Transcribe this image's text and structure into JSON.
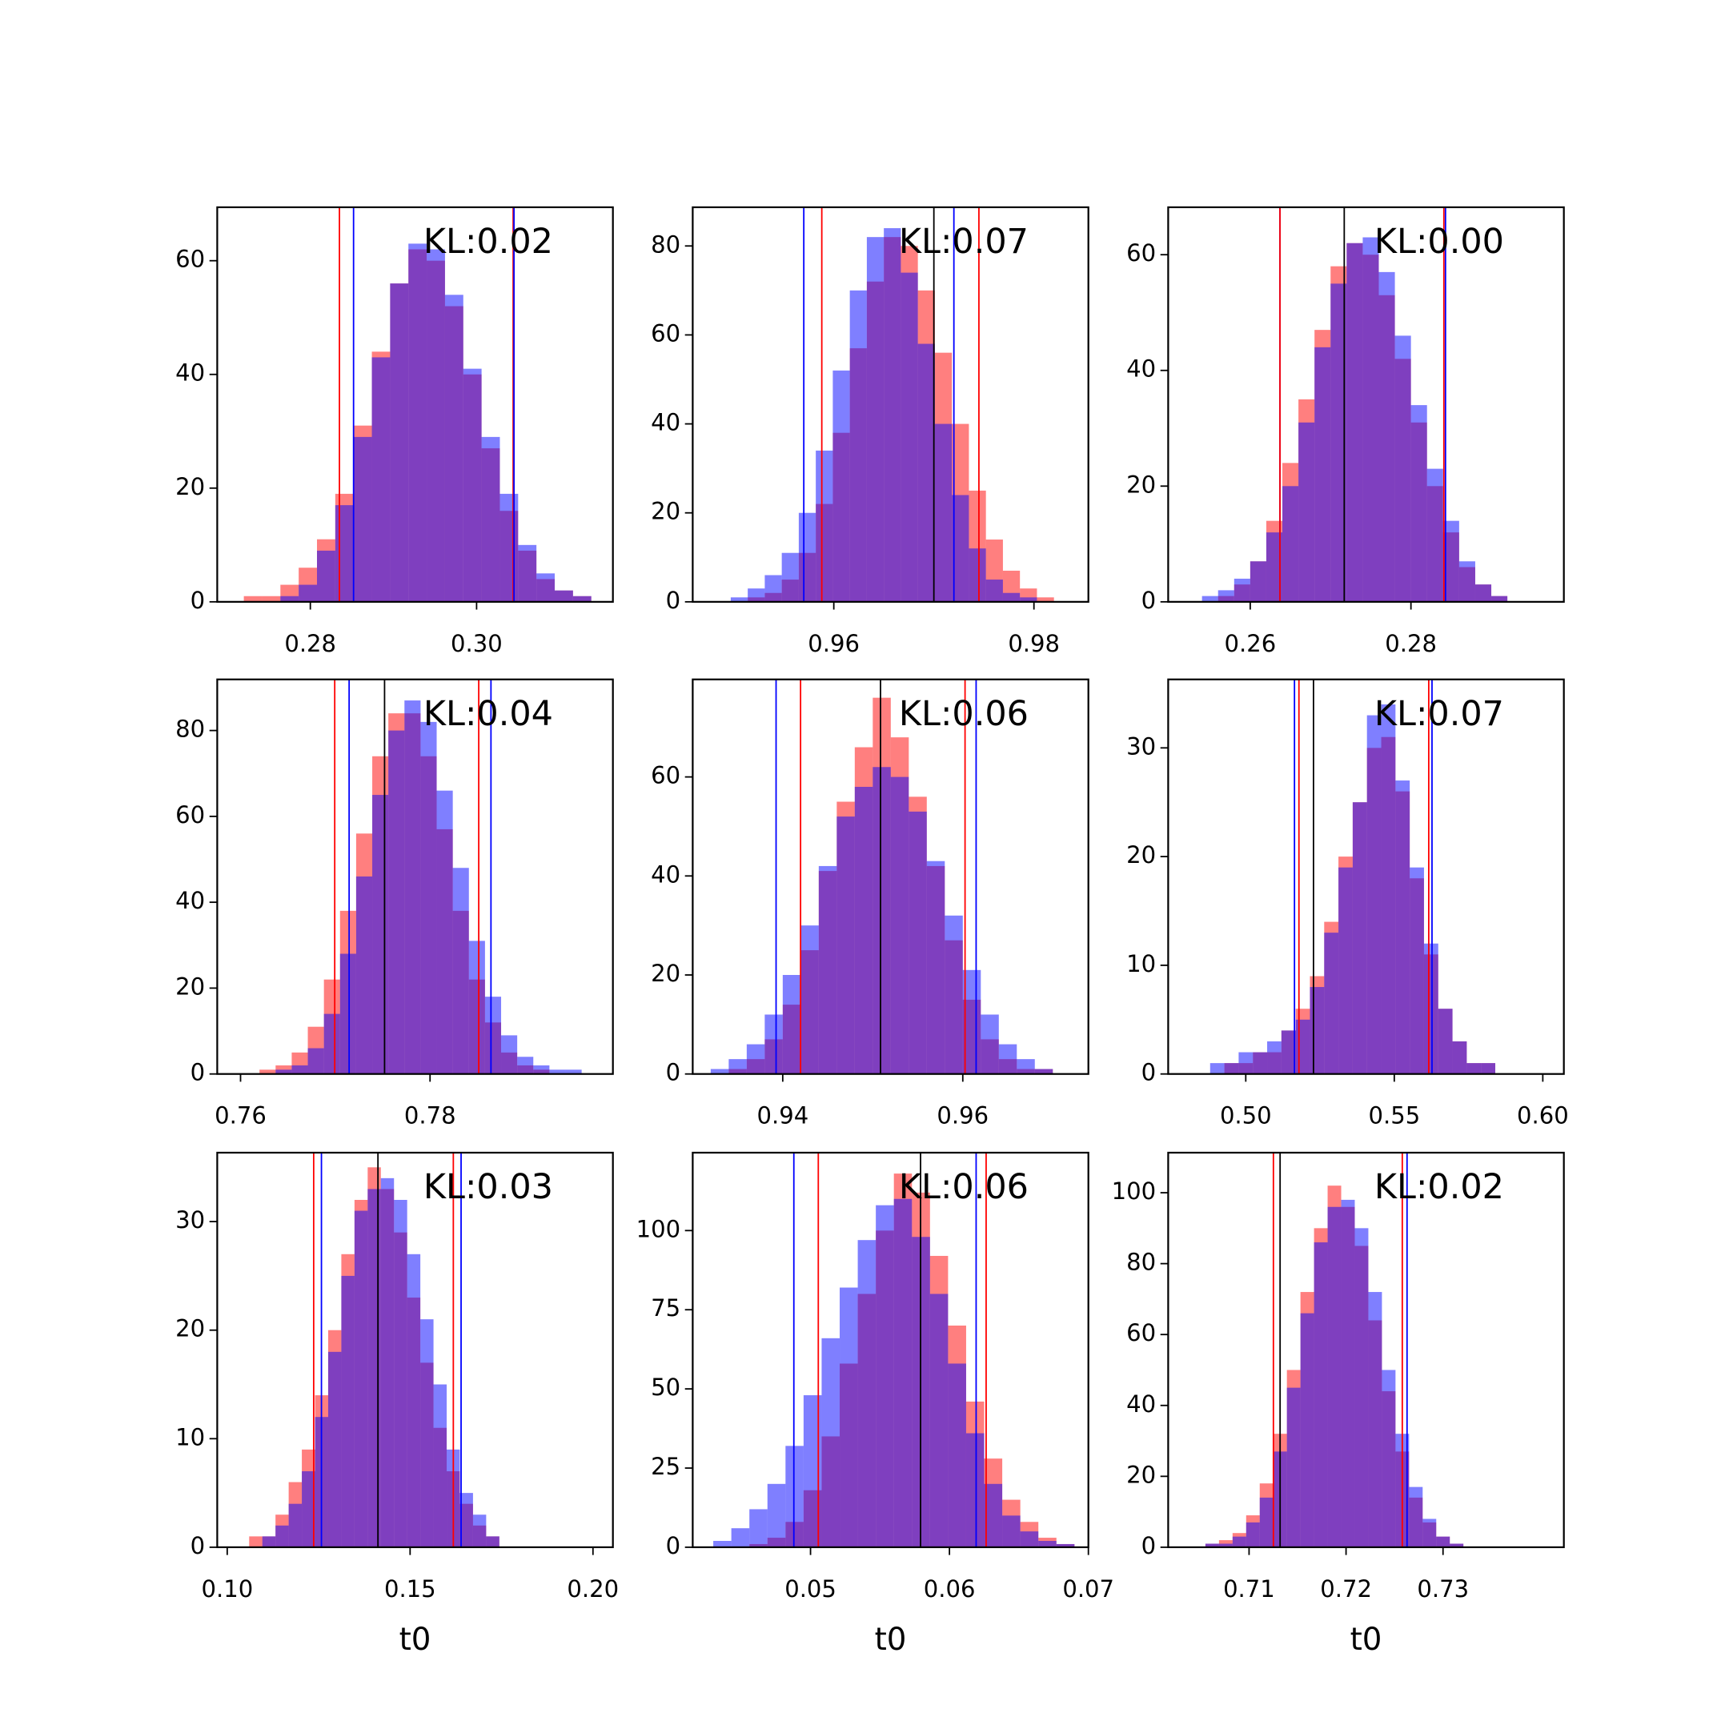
{
  "chart_data": [
    {
      "type": "histogram",
      "annotation": "KL:0.02",
      "xlim": [
        0.2688,
        0.3164
      ],
      "ylim": [
        0,
        69.4
      ],
      "xticks": [
        0.28,
        {
          "value": 0.3,
          "label": "0.30"
        }
      ],
      "yticks": [
        0,
        20,
        40,
        60
      ],
      "bins": [
        0.272,
        0.2742,
        0.2764,
        0.2786,
        0.2808,
        0.283,
        0.2852,
        0.2874,
        0.2896,
        0.2918,
        0.294,
        0.2962,
        0.2984,
        0.3006,
        0.3028,
        0.305,
        0.3072,
        0.3094,
        0.3116,
        0.3138,
        0.316
      ],
      "series": [
        {
          "color": "#ff0000",
          "alpha": 0.5,
          "values": [
            1,
            1,
            3,
            6,
            11,
            19,
            31,
            44,
            56,
            62,
            60,
            52,
            40,
            27,
            16,
            9,
            4,
            2,
            1,
            0
          ]
        },
        {
          "color": "#0000ff",
          "alpha": 0.5,
          "values": [
            0,
            0,
            1,
            3,
            9,
            17,
            29,
            43,
            56,
            63,
            62,
            54,
            41,
            29,
            19,
            10,
            5,
            2,
            1,
            0
          ]
        }
      ],
      "vlines": [
        {
          "x": 0.2835,
          "color": "#ff0000"
        },
        {
          "x": 0.2852,
          "color": "#0000ff"
        },
        {
          "x": 0.3044,
          "color": "#ff0000"
        },
        {
          "x": 0.3045,
          "color": "#0000ff"
        }
      ]
    },
    {
      "type": "histogram",
      "annotation": "KL:0.07",
      "xlim": [
        0.9459,
        0.98544
      ],
      "ylim": [
        0,
        88.7
      ],
      "xticks": [
        0.96,
        0.98
      ],
      "yticks": [
        0,
        20,
        40,
        60,
        80
      ],
      "bins": [
        0.948,
        0.9497,
        0.9514,
        0.9531,
        0.9548,
        0.9565,
        0.9582,
        0.9599,
        0.9616,
        0.9633,
        0.965,
        0.9667,
        0.9684,
        0.9701,
        0.9718,
        0.9735,
        0.9752,
        0.9769,
        0.9786,
        0.9803,
        0.982
      ],
      "series": [
        {
          "color": "#ff0000",
          "alpha": 0.5,
          "values": [
            0,
            0,
            1,
            2,
            5,
            11,
            22,
            38,
            57,
            72,
            82,
            80,
            70,
            56,
            40,
            25,
            14,
            7,
            3,
            1
          ]
        },
        {
          "color": "#0000ff",
          "alpha": 0.5,
          "values": [
            0,
            1,
            3,
            6,
            11,
            20,
            34,
            52,
            70,
            82,
            84,
            74,
            58,
            40,
            24,
            12,
            5,
            2,
            1,
            0
          ]
        }
      ],
      "vlines": [
        {
          "x": 0.957,
          "color": "#0000ff"
        },
        {
          "x": 0.9588,
          "color": "#ff0000"
        },
        {
          "x": 0.97,
          "color": "#000000"
        },
        {
          "x": 0.972,
          "color": "#0000ff"
        },
        {
          "x": 0.9745,
          "color": "#ff0000"
        }
      ]
    },
    {
      "type": "histogram",
      "annotation": "KL:0.00",
      "xlim": [
        0.24979,
        0.29903
      ],
      "ylim": [
        0,
        68.2
      ],
      "xticks": [
        0.26,
        0.28
      ],
      "yticks": [
        0,
        20,
        40,
        60
      ],
      "bins": [
        0.254,
        0.256,
        0.258,
        0.26,
        0.262,
        0.264,
        0.266,
        0.268,
        0.27,
        0.272,
        0.274,
        0.276,
        0.278,
        0.28,
        0.282,
        0.284,
        0.286,
        0.288,
        0.29,
        0.292,
        0.294
      ],
      "series": [
        {
          "color": "#ff0000",
          "alpha": 0.5,
          "values": [
            0,
            1,
            3,
            7,
            14,
            24,
            35,
            47,
            58,
            62,
            60,
            53,
            42,
            31,
            20,
            12,
            6,
            3,
            1,
            0
          ]
        },
        {
          "color": "#0000ff",
          "alpha": 0.5,
          "values": [
            1,
            2,
            4,
            7,
            12,
            20,
            31,
            44,
            55,
            62,
            63,
            57,
            46,
            34,
            23,
            14,
            7,
            3,
            1,
            0
          ]
        }
      ],
      "vlines": [
        {
          "x": 0.2637,
          "color": "#0000ff"
        },
        {
          "x": 0.2637,
          "color": "#ff0000"
        },
        {
          "x": 0.2717,
          "color": "#000000"
        },
        {
          "x": 0.2841,
          "color": "#ff0000"
        },
        {
          "x": 0.2843,
          "color": "#0000ff"
        }
      ]
    },
    {
      "type": "histogram",
      "annotation": "KL:0.04",
      "xlim": [
        0.75754,
        0.7993
      ],
      "ylim": [
        0,
        91.9
      ],
      "xticks": [
        0.76,
        0.78
      ],
      "yticks": [
        0,
        20,
        40,
        60,
        80
      ],
      "bins": [
        0.762,
        0.7637,
        0.7654,
        0.7671,
        0.7688,
        0.7705,
        0.7722,
        0.7739,
        0.7756,
        0.7773,
        0.779,
        0.7807,
        0.7824,
        0.7841,
        0.7858,
        0.7875,
        0.7892,
        0.7909,
        0.7926,
        0.7943,
        0.796
      ],
      "series": [
        {
          "color": "#ff0000",
          "alpha": 0.5,
          "values": [
            1,
            2,
            5,
            11,
            22,
            38,
            56,
            74,
            84,
            84,
            74,
            57,
            38,
            22,
            12,
            5,
            2,
            1,
            0,
            0
          ]
        },
        {
          "color": "#0000ff",
          "alpha": 0.5,
          "values": [
            0,
            1,
            2,
            6,
            14,
            28,
            46,
            65,
            80,
            87,
            82,
            66,
            48,
            31,
            18,
            9,
            4,
            2,
            1,
            1
          ]
        }
      ],
      "vlines": [
        {
          "x": 0.76994,
          "color": "#ff0000"
        },
        {
          "x": 0.77146,
          "color": "#0000ff"
        },
        {
          "x": 0.7752,
          "color": "#000000"
        },
        {
          "x": 0.78514,
          "color": "#ff0000"
        },
        {
          "x": 0.78643,
          "color": "#0000ff"
        }
      ]
    },
    {
      "type": "histogram",
      "annotation": "KL:0.06",
      "xlim": [
        0.93,
        0.97395
      ],
      "ylim": [
        0,
        79.7
      ],
      "xticks": [
        0.94,
        0.96
      ],
      "yticks": [
        0,
        20,
        40,
        60
      ],
      "bins": [
        0.932,
        0.934,
        0.936,
        0.938,
        0.94,
        0.942,
        0.944,
        0.946,
        0.948,
        0.95,
        0.952,
        0.954,
        0.956,
        0.958,
        0.96,
        0.962,
        0.964,
        0.966,
        0.968,
        0.97,
        0.972
      ],
      "series": [
        {
          "color": "#ff0000",
          "alpha": 0.5,
          "values": [
            0,
            1,
            3,
            7,
            14,
            25,
            41,
            55,
            66,
            76,
            68,
            56,
            42,
            27,
            15,
            7,
            3,
            1,
            1,
            0
          ]
        },
        {
          "color": "#0000ff",
          "alpha": 0.5,
          "values": [
            1,
            3,
            6,
            12,
            20,
            30,
            42,
            52,
            58,
            62,
            60,
            53,
            43,
            32,
            21,
            12,
            6,
            3,
            1,
            0
          ]
        }
      ],
      "vlines": [
        {
          "x": 0.93926,
          "color": "#0000ff"
        },
        {
          "x": 0.94198,
          "color": "#ff0000"
        },
        {
          "x": 0.95086,
          "color": "#000000"
        },
        {
          "x": 0.96025,
          "color": "#ff0000"
        },
        {
          "x": 0.96148,
          "color": "#0000ff"
        }
      ]
    },
    {
      "type": "histogram",
      "annotation": "KL:0.07",
      "xlim": [
        0.47388,
        0.60709
      ],
      "ylim": [
        0,
        36.3
      ],
      "xticks": [
        {
          "value": 0.5,
          "label": "0.50"
        },
        0.55,
        {
          "value": 0.6,
          "label": "0.60"
        }
      ],
      "yticks": [
        0,
        10,
        20,
        30
      ],
      "bins": [
        0.488,
        0.4928,
        0.4976,
        0.5024,
        0.5072,
        0.512,
        0.5168,
        0.5216,
        0.5264,
        0.5312,
        0.536,
        0.5408,
        0.5456,
        0.5504,
        0.5552,
        0.56,
        0.5648,
        0.5696,
        0.5744,
        0.5792,
        0.584
      ],
      "series": [
        {
          "color": "#ff0000",
          "alpha": 0.5,
          "values": [
            0,
            1,
            1,
            2,
            2,
            4,
            6,
            9,
            14,
            20,
            25,
            30,
            31,
            26,
            18,
            11,
            6,
            3,
            1,
            1
          ]
        },
        {
          "color": "#0000ff",
          "alpha": 0.5,
          "values": [
            1,
            1,
            2,
            2,
            3,
            4,
            5,
            8,
            13,
            19,
            25,
            33,
            34,
            27,
            19,
            12,
            6,
            3,
            1,
            1
          ]
        }
      ],
      "vlines": [
        {
          "x": 0.5164,
          "color": "#0000ff"
        },
        {
          "x": 0.5179,
          "color": "#ff0000"
        },
        {
          "x": 0.5228,
          "color": "#000000"
        },
        {
          "x": 0.5616,
          "color": "#ff0000"
        },
        {
          "x": 0.5627,
          "color": "#0000ff"
        }
      ]
    },
    {
      "type": "histogram",
      "annotation": "KL:0.03",
      "xlabel": "t0",
      "xlim": [
        0.09727,
        0.20545
      ],
      "ylim": [
        0,
        36.35
      ],
      "xticks": [
        {
          "value": 0.1,
          "label": "0.10"
        },
        0.15,
        {
          "value": 0.2,
          "label": "0.20"
        }
      ],
      "yticks": [
        0,
        10,
        20,
        30
      ],
      "bins": [
        0.106,
        0.1096,
        0.1132,
        0.1168,
        0.1204,
        0.124,
        0.1276,
        0.1312,
        0.1348,
        0.1384,
        0.142,
        0.1456,
        0.1492,
        0.1528,
        0.1564,
        0.16,
        0.1636,
        0.1672,
        0.1708,
        0.1744,
        0.178
      ],
      "series": [
        {
          "color": "#ff0000",
          "alpha": 0.5,
          "values": [
            1,
            1,
            3,
            6,
            9,
            14,
            20,
            27,
            32,
            35,
            33,
            29,
            23,
            17,
            11,
            7,
            4,
            2,
            1,
            0
          ]
        },
        {
          "color": "#0000ff",
          "alpha": 0.5,
          "values": [
            0,
            1,
            2,
            4,
            7,
            12,
            18,
            25,
            31,
            33,
            34,
            32,
            27,
            21,
            15,
            9,
            5,
            3,
            1,
            0
          ]
        }
      ],
      "vlines": [
        {
          "x": 0.12364,
          "color": "#ff0000"
        },
        {
          "x": 0.12576,
          "color": "#0000ff"
        },
        {
          "x": 0.14121,
          "color": "#000000"
        },
        {
          "x": 0.16182,
          "color": "#ff0000"
        },
        {
          "x": 0.16394,
          "color": "#0000ff"
        }
      ]
    },
    {
      "type": "histogram",
      "annotation": "KL:0.06",
      "xlabel": "t0",
      "xlim": [
        0.04152,
        0.07
      ],
      "ylim": [
        0,
        124.6
      ],
      "xticks": [
        0.05,
        0.06,
        0.07
      ],
      "yticks": [
        0,
        25,
        50,
        75,
        100
      ],
      "bins": [
        0.043,
        0.0443,
        0.0456,
        0.0469,
        0.0482,
        0.0495,
        0.0508,
        0.0521,
        0.0534,
        0.0547,
        0.056,
        0.0573,
        0.0586,
        0.0599,
        0.0612,
        0.0625,
        0.0638,
        0.0651,
        0.0664,
        0.0677,
        0.069
      ],
      "series": [
        {
          "color": "#ff0000",
          "alpha": 0.5,
          "values": [
            0,
            0,
            1,
            3,
            8,
            18,
            35,
            58,
            80,
            100,
            118,
            112,
            92,
            70,
            46,
            28,
            15,
            8,
            3,
            1
          ]
        },
        {
          "color": "#0000ff",
          "alpha": 0.5,
          "values": [
            2,
            6,
            12,
            20,
            32,
            48,
            66,
            82,
            97,
            108,
            110,
            98,
            80,
            58,
            36,
            20,
            10,
            5,
            2,
            1
          ]
        }
      ],
      "vlines": [
        {
          "x": 0.0488,
          "color": "#0000ff"
        },
        {
          "x": 0.05056,
          "color": "#ff0000"
        },
        {
          "x": 0.05792,
          "color": "#000000"
        },
        {
          "x": 0.06192,
          "color": "#0000ff"
        },
        {
          "x": 0.06264,
          "color": "#ff0000"
        }
      ]
    },
    {
      "type": "histogram",
      "annotation": "KL:0.02",
      "xlabel": "t0",
      "xlim": [
        0.70166,
        0.74246
      ],
      "ylim": [
        0,
        111.3
      ],
      "xticks": [
        0.71,
        0.72,
        0.73
      ],
      "yticks": [
        0,
        20,
        40,
        60,
        80,
        100
      ],
      "bins": [
        0.7055,
        0.7069,
        0.7083,
        0.7097,
        0.7111,
        0.7125,
        0.7139,
        0.7153,
        0.7167,
        0.7181,
        0.7195,
        0.7209,
        0.7223,
        0.7237,
        0.7251,
        0.7265,
        0.7279,
        0.7293,
        0.7307,
        0.7321,
        0.7335
      ],
      "series": [
        {
          "color": "#ff0000",
          "alpha": 0.5,
          "values": [
            1,
            2,
            4,
            9,
            18,
            32,
            50,
            72,
            90,
            102,
            96,
            85,
            64,
            44,
            27,
            14,
            7,
            3,
            1,
            0
          ]
        },
        {
          "color": "#0000ff",
          "alpha": 0.5,
          "values": [
            1,
            1,
            3,
            7,
            14,
            27,
            45,
            66,
            86,
            96,
            98,
            90,
            72,
            50,
            32,
            17,
            8,
            3,
            1,
            0
          ]
        }
      ],
      "vlines": [
        {
          "x": 0.71251,
          "color": "#ff0000"
        },
        {
          "x": 0.7132,
          "color": "#000000"
        },
        {
          "x": 0.7258,
          "color": "#ff0000"
        },
        {
          "x": 0.72629,
          "color": "#0000ff"
        }
      ]
    }
  ]
}
